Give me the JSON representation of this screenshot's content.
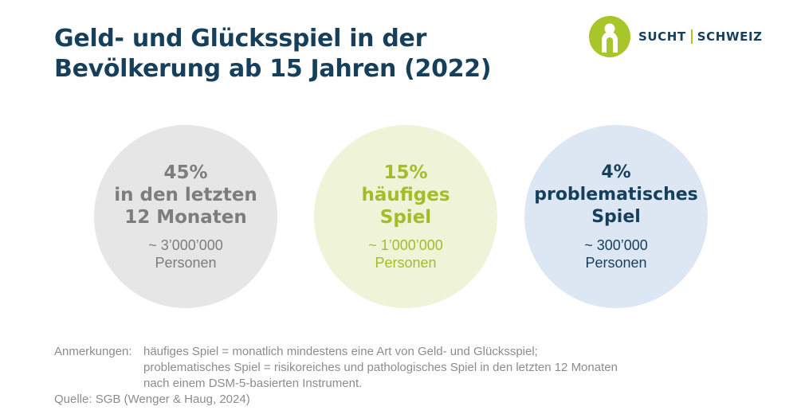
{
  "title": {
    "line1": "Geld- und Glücksspiel in der",
    "line2": "Bevölkerung ab 15 Jahren (2022)"
  },
  "logo": {
    "name": "sucht-schweiz-logo-icon",
    "left": "SUCHT",
    "right": "SCHWEIZ",
    "colors": {
      "accent": "#a8c52a",
      "text": "#163f5c"
    }
  },
  "chart_data": {
    "type": "proportional-circles",
    "title": "Geld- und Glücksspiel in der Bevölkerung ab 15 Jahren (2022)",
    "items": [
      {
        "percent": 45,
        "pct_label": "45%",
        "label_lines": [
          "in den letzten",
          "12 Monaten"
        ],
        "count_label": "~ 3’000’000",
        "unit": "Personen",
        "circle_color": "#e6e6e6",
        "text_color": "#7d7d7d"
      },
      {
        "percent": 15,
        "pct_label": "15%",
        "label_lines": [
          "häufiges",
          "Spiel"
        ],
        "count_label": "~ 1’000’000",
        "unit": "Personen",
        "circle_color": "#eff4d8",
        "text_color": "#a3bc28"
      },
      {
        "percent": 4,
        "pct_label": "4%",
        "label_lines": [
          "problematisches",
          "Spiel"
        ],
        "count_label": "~ 300’000",
        "unit": "Personen",
        "circle_color": "#dde7f3",
        "text_color": "#163f5c"
      }
    ]
  },
  "notes": {
    "label": "Anmerkungen:",
    "lines": [
      "häufiges Spiel = monatlich mindestens eine Art von Geld- und Glücksspiel;",
      "problematisches Spiel = risikoreiches und pathologisches Spiel in den letzten 12 Monaten",
      "nach einem DSM-5-basierten Instrument."
    ],
    "source": "Quelle: SGB (Wenger & Haug, 2024)"
  }
}
